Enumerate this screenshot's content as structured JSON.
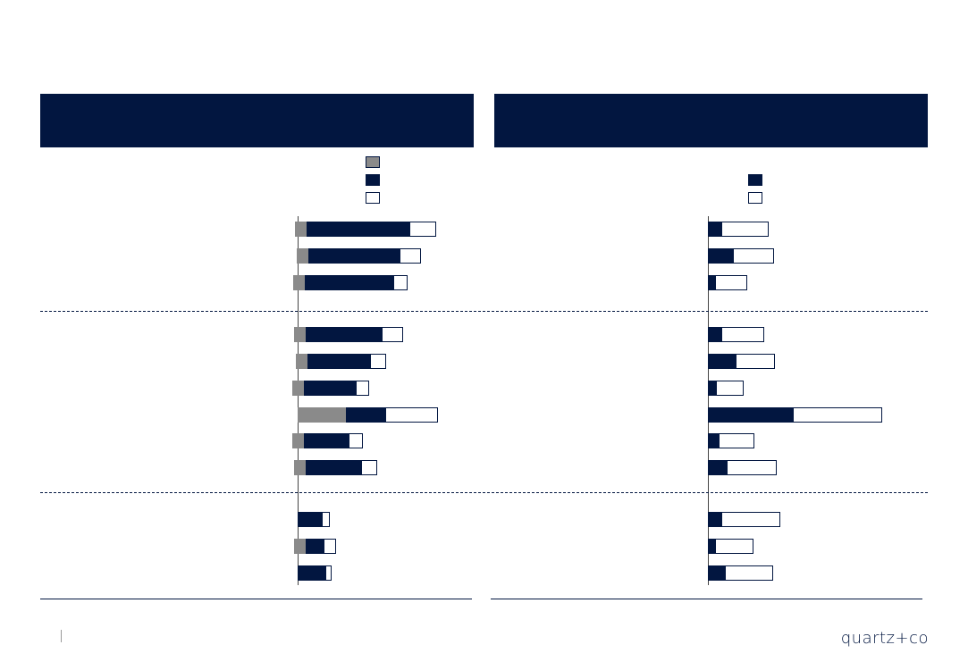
{
  "brand": "quartz+co",
  "colors": {
    "navy": "#021640",
    "grey": "#8a8a8a",
    "white": "#ffffff"
  },
  "chart_data": [
    {
      "type": "bar",
      "orientation": "horizontal",
      "stacked": true,
      "title": "",
      "xlabel": "",
      "ylabel": "",
      "series": [
        {
          "color": "#8a8a8a",
          "values": [
            -3,
            -1,
            -5,
            -4,
            -2,
            -6,
            54,
            -6,
            -4,
            0,
            -4,
            0
          ]
        },
        {
          "color": "#021640",
          "values": [
            126,
            115,
            108,
            95,
            82,
            66,
            99,
            58,
            72,
            28,
            30,
            32
          ]
        },
        {
          "color": "#ffffff",
          "values": [
            155,
            138,
            123,
            118,
            99,
            80,
            157,
            73,
            89,
            36,
            43,
            38
          ]
        }
      ],
      "groups": [
        3,
        6,
        3
      ],
      "grid": false
    },
    {
      "type": "bar",
      "orientation": "horizontal",
      "stacked": true,
      "title": "",
      "xlabel": "",
      "ylabel": "",
      "series": [
        {
          "color": "#021640",
          "values": [
            16,
            29,
            9,
            16,
            32,
            10,
            96,
            13,
            22,
            16,
            9,
            20
          ]
        },
        {
          "color": "#ffffff",
          "values": [
            68,
            74,
            44,
            63,
            75,
            40,
            195,
            52,
            77,
            81,
            51,
            73
          ]
        }
      ],
      "groups": [
        3,
        6,
        3
      ],
      "grid": false
    }
  ]
}
